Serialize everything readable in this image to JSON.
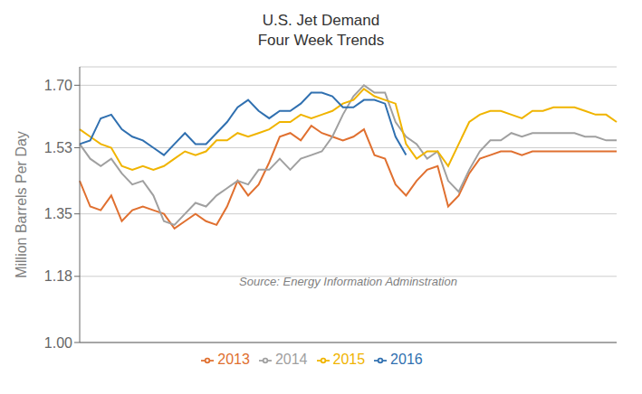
{
  "chart_data": {
    "type": "line",
    "title": "U.S. Jet Demand\nFour Week Trends",
    "y_label": "Million Barrels Per Day",
    "annotation": "Source: Energy Information Adminstration",
    "categories": [
      null,
      null,
      null,
      null,
      null,
      null,
      null,
      null,
      null,
      null,
      null,
      null,
      null,
      null,
      null,
      null,
      null,
      null,
      null,
      null,
      null,
      null,
      null,
      null,
      null,
      null,
      null,
      null,
      null,
      null,
      null,
      null,
      null,
      null,
      null,
      null,
      null,
      null,
      null,
      null,
      null,
      null,
      null,
      null,
      null,
      null,
      null,
      null,
      null,
      null,
      null,
      null
    ],
    "series": [
      {
        "name": "2013",
        "color": "#E07030",
        "values": [
          1.44,
          1.37,
          1.36,
          1.4,
          1.33,
          1.36,
          1.37,
          1.36,
          1.35,
          1.31,
          1.33,
          1.35,
          1.33,
          1.32,
          1.37,
          1.44,
          1.4,
          1.43,
          1.49,
          1.56,
          1.57,
          1.55,
          1.59,
          1.57,
          1.56,
          1.55,
          1.56,
          1.58,
          1.51,
          1.5,
          1.43,
          1.4,
          1.44,
          1.47,
          1.48,
          1.37,
          1.4,
          1.46,
          1.5,
          1.51,
          1.52,
          1.52,
          1.51,
          1.52,
          1.52,
          1.52,
          1.52,
          1.52,
          1.52,
          1.52,
          1.52,
          1.52
        ]
      },
      {
        "name": "2014",
        "color": "#A0A0A0",
        "values": [
          1.54,
          1.5,
          1.48,
          1.5,
          1.46,
          1.43,
          1.44,
          1.4,
          1.33,
          1.32,
          1.35,
          1.38,
          1.37,
          1.4,
          1.42,
          1.44,
          1.43,
          1.47,
          1.47,
          1.5,
          1.47,
          1.5,
          1.51,
          1.52,
          1.56,
          1.62,
          1.67,
          1.7,
          1.68,
          1.68,
          1.6,
          1.56,
          1.54,
          1.5,
          1.52,
          1.44,
          1.41,
          1.47,
          1.52,
          1.55,
          1.55,
          1.57,
          1.56,
          1.57,
          1.57,
          1.57,
          1.57,
          1.57,
          1.56,
          1.56,
          1.55,
          1.55
        ]
      },
      {
        "name": "2015",
        "color": "#F0B400",
        "values": [
          1.58,
          1.56,
          1.54,
          1.53,
          1.48,
          1.47,
          1.48,
          1.47,
          1.48,
          1.5,
          1.52,
          1.51,
          1.52,
          1.55,
          1.55,
          1.57,
          1.56,
          1.57,
          1.58,
          1.6,
          1.6,
          1.62,
          1.61,
          1.62,
          1.63,
          1.65,
          1.66,
          1.69,
          1.67,
          1.66,
          1.65,
          1.54,
          1.5,
          1.52,
          1.52,
          1.48,
          1.54,
          1.6,
          1.62,
          1.63,
          1.63,
          1.62,
          1.61,
          1.63,
          1.63,
          1.64,
          1.64,
          1.64,
          1.63,
          1.62,
          1.62,
          1.6
        ]
      },
      {
        "name": "2016",
        "color": "#3070B0",
        "values": [
          1.54,
          1.55,
          1.61,
          1.62,
          1.58,
          1.56,
          1.55,
          1.53,
          1.51,
          1.54,
          1.57,
          1.54,
          1.54,
          1.57,
          1.6,
          1.64,
          1.66,
          1.63,
          1.61,
          1.63,
          1.63,
          1.65,
          1.68,
          1.68,
          1.67,
          1.64,
          1.64,
          1.66,
          1.66,
          1.65,
          1.56,
          1.51,
          null,
          null,
          null,
          null,
          null,
          null,
          null,
          null,
          null,
          null,
          null,
          null,
          null,
          null,
          null,
          null,
          null,
          null,
          null,
          null
        ]
      }
    ],
    "ylim": [
      1.0,
      1.75
    ],
    "yticks": [
      {
        "value": 1.0,
        "label": "1.00"
      },
      1.18,
      1.35,
      1.53,
      {
        "value": 1.7,
        "label": "1.70"
      }
    ],
    "grid": true,
    "legend": "bottom",
    "tick_labels": "y"
  }
}
